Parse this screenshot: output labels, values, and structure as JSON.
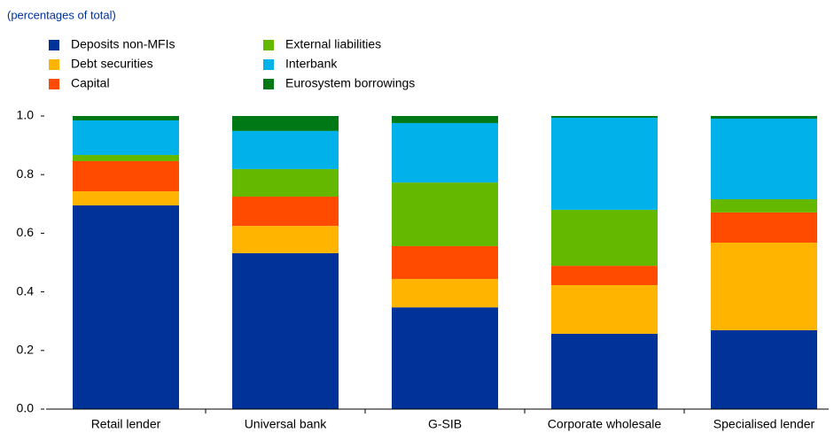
{
  "chart_data": {
    "type": "stacked_bar",
    "subtitle": "(percentages of total)",
    "categories": [
      "Retail lender",
      "Universal bank",
      "G-SIB",
      "Corporate wholesale",
      "Specialised lender"
    ],
    "series": [
      {
        "name": "Deposits non-MFIs",
        "color": "#003299",
        "values": [
          0.695,
          0.532,
          0.347,
          0.257,
          0.269
        ]
      },
      {
        "name": "Debt securities",
        "color": "#ffb400",
        "values": [
          0.048,
          0.093,
          0.097,
          0.166,
          0.299
        ]
      },
      {
        "name": "Capital",
        "color": "#ff4b00",
        "values": [
          0.103,
          0.1,
          0.112,
          0.066,
          0.103
        ]
      },
      {
        "name": "External liabilities",
        "color": "#65b800",
        "values": [
          0.021,
          0.094,
          0.217,
          0.191,
          0.045
        ]
      },
      {
        "name": "Interbank",
        "color": "#00b1ea",
        "values": [
          0.118,
          0.13,
          0.203,
          0.314,
          0.275
        ]
      },
      {
        "name": "Eurosystem borrowings",
        "color": "#007816",
        "values": [
          0.015,
          0.051,
          0.024,
          0.006,
          0.009
        ]
      }
    ],
    "ylim": [
      0,
      1
    ],
    "yticks": [
      {
        "value": 0,
        "label": "0.0"
      },
      0.2,
      0.4,
      0.6,
      0.8,
      {
        "value": 1,
        "label": "1.0"
      }
    ],
    "grid": false
  }
}
